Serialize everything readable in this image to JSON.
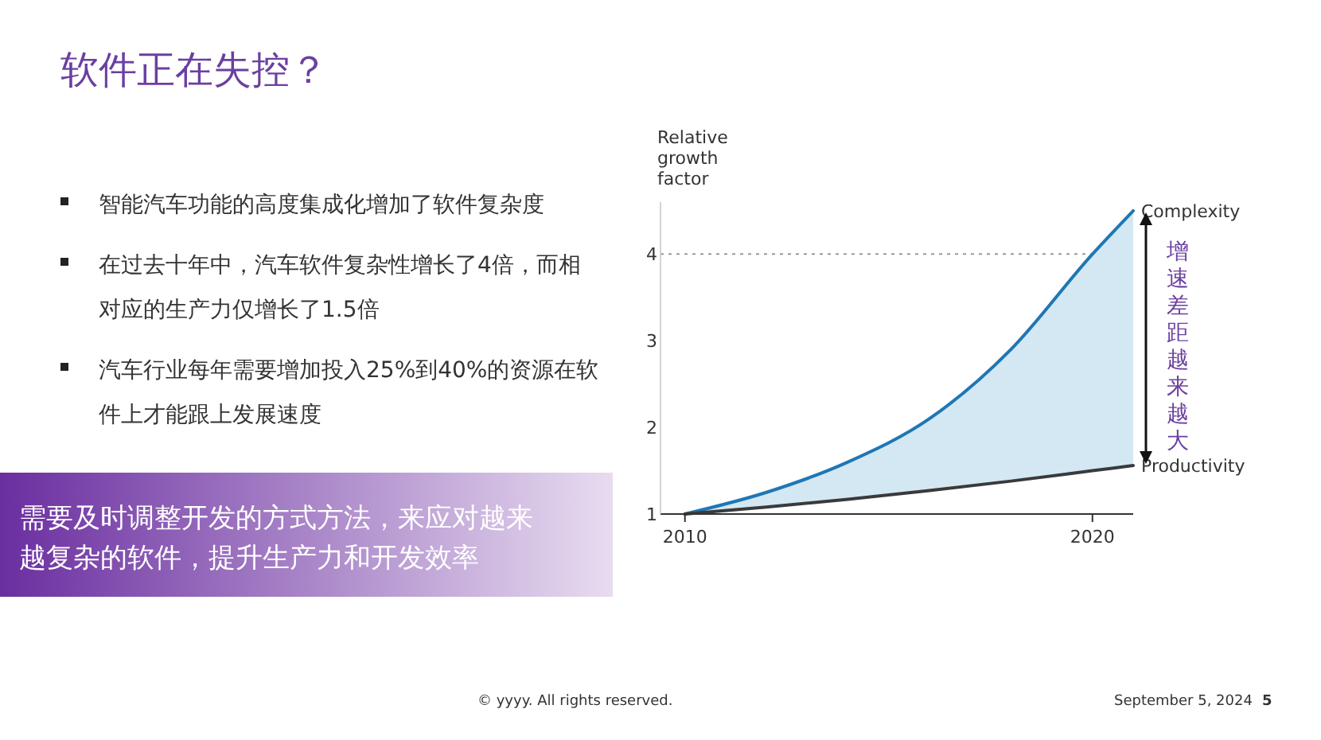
{
  "chart_data": {
    "type": "line",
    "title": "软件正在失控？",
    "ylabel": "Relative growth factor",
    "x": [
      2010,
      2012,
      2014,
      2016,
      2018,
      2020,
      2021
    ],
    "series": [
      {
        "name": "Complexity",
        "color": "#1f77b4",
        "values": [
          1,
          1.25,
          1.6,
          2.1,
          2.9,
          4.0,
          4.5
        ],
        "lower": [
          1,
          1.08,
          1.17,
          1.27,
          1.38,
          1.5,
          1.56
        ],
        "upper": [
          1,
          1.25,
          1.6,
          2.1,
          2.9,
          4.0,
          4.5
        ]
      },
      {
        "name": "Productivity",
        "color": "#3a3a3a",
        "values": [
          1,
          1.08,
          1.17,
          1.27,
          1.38,
          1.5,
          1.56
        ]
      }
    ],
    "xlim": [
      2009.4,
      2021
    ],
    "ylim": [
      1,
      4.6
    ],
    "xticks": [
      2010,
      2020
    ],
    "yticks": [
      1,
      2,
      3,
      4
    ],
    "ref_lines": [
      {
        "axis": "y",
        "value": 4,
        "line_style": "dotted",
        "color": "#999999"
      }
    ],
    "grid": false,
    "marker": "none",
    "line_style": "solid",
    "annotations": [
      "智能汽车功能的高度集成化增加了软件复杂度",
      "在过去十年中，汽车软件复杂性增长了4倍，而相对应的生产力仅增长了1.5倍",
      "汽车行业每年需要增加投入25%到40%的资源在软件上才能跟上发展速度",
      "需要及时调整开发的方式方法，来应对越来越复杂的软件，提升生产力和开发效率",
      "增速差距越来越大",
      "© yyyy. All rights reserved.",
      "September 5, 2024",
      "5"
    ]
  }
}
